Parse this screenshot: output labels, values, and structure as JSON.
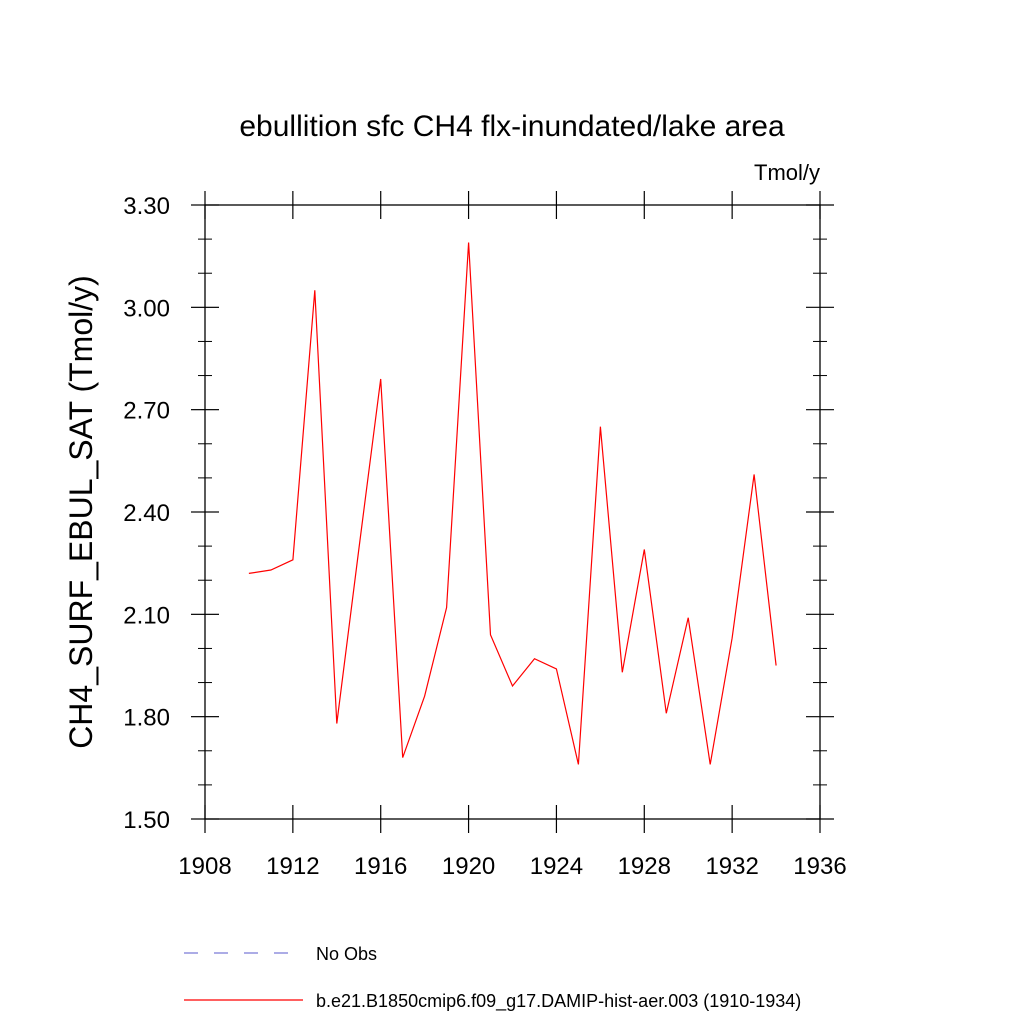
{
  "chart_data": {
    "type": "line",
    "title": "ebullition sfc CH4 flx-inundated/lake area",
    "subtitle": "Tmol/y",
    "ylabel": "CH4_SURF_EBUL_SAT  (Tmol/y)",
    "xlabel": "",
    "xlim": [
      1908,
      1936
    ],
    "ylim": [
      1.5,
      3.3
    ],
    "x_ticks": [
      1908,
      1912,
      1916,
      1920,
      1924,
      1928,
      1932,
      1936
    ],
    "x_tick_labels": [
      "1908",
      "1912",
      "1916",
      "1920",
      "1924",
      "1928",
      "1932",
      "1936"
    ],
    "y_ticks": [
      1.5,
      1.8,
      2.1,
      2.4,
      2.7,
      3.0,
      3.3
    ],
    "y_tick_labels": [
      "1.50",
      "1.80",
      "2.10",
      "2.40",
      "2.70",
      "3.00",
      "3.30"
    ],
    "grid": false,
    "legend_position": "bottom",
    "x": [
      1910,
      1911,
      1912,
      1913,
      1914,
      1915,
      1916,
      1917,
      1918,
      1919,
      1920,
      1921,
      1922,
      1923,
      1924,
      1925,
      1926,
      1927,
      1928,
      1929,
      1930,
      1931,
      1932,
      1933,
      1934
    ],
    "series": [
      {
        "name": "b.e21.B1850cmip6.f09_g17.DAMIP-hist-aer.003 (1910-1934)",
        "color": "#ff0000",
        "values": [
          2.22,
          2.23,
          2.26,
          3.05,
          1.78,
          2.29,
          2.79,
          1.68,
          1.86,
          2.12,
          3.19,
          2.04,
          1.89,
          1.97,
          1.94,
          1.66,
          2.65,
          1.93,
          2.29,
          1.81,
          2.09,
          1.66,
          2.03,
          2.51,
          1.95
        ]
      }
    ],
    "legend": [
      {
        "label": "No Obs",
        "style": "dashed",
        "color": "#7b7bd6"
      },
      {
        "label": "b.e21.B1850cmip6.f09_g17.DAMIP-hist-aer.003 (1910-1934)",
        "style": "solid",
        "color": "#ff0000"
      }
    ]
  }
}
